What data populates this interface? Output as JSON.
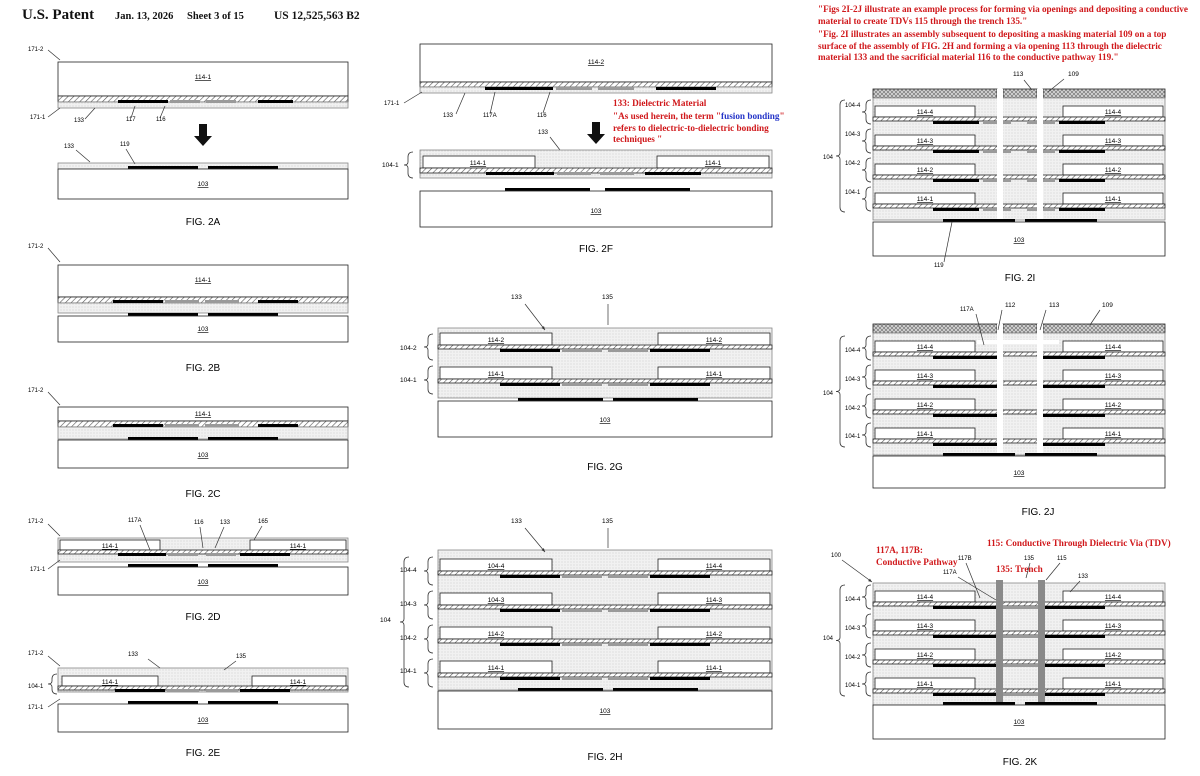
{
  "header": {
    "office": "U.S. Patent",
    "date": "Jan. 13, 2026",
    "sheet": "Sheet 3 of 15",
    "patent_number": "US 12,525,563 B2"
  },
  "colors": {
    "annotation_red": "#d0181b",
    "annotation_blue": "#2535c8",
    "dielectric_fill": "#ececec",
    "hatch": "#555555",
    "conductor": "#000000"
  },
  "annotations": {
    "top_right_1": "\"Figs 2I-2J illustrate an example process for forming via openings and depositing a conductive material to create TDVs 115 through the trench 135.\"",
    "top_right_2": "\"Fig. 2I illustrates an assembly subsequent to depositing a masking material 109 on a top surface of the assembly of FIG. 2H and forming a via opening 113 through the dielectric material 133 and the sacrificial material 116 to the conductive pathway 119.\"",
    "dielectric_title": "133: Dielectric Material",
    "fusion_pre": "\"As used herein, the term \"",
    "fusion_term": "fusion bonding",
    "fusion_post": "\" refers to dielectric-to-dielectric bonding techniques \"",
    "pathway_1": "117A, 117B:",
    "pathway_2": "Conductive Pathway",
    "tdv": "115: Conductive Through Dielectric Via (TDV)",
    "trench": "135: Trench"
  },
  "figures": {
    "2A": {
      "caption": "FIG. 2A",
      "labels": [
        "171-2",
        "114-1",
        "171-1",
        "133",
        "117",
        "116",
        "133",
        "119",
        "103"
      ]
    },
    "2B": {
      "caption": "FIG. 2B",
      "labels": [
        "171-2",
        "114-1",
        "103"
      ]
    },
    "2C": {
      "caption": "FIG. 2C",
      "labels": [
        "171-2",
        "114-1",
        "103"
      ]
    },
    "2D": {
      "caption": "FIG. 2D",
      "labels": [
        "171-2",
        "117A",
        "116",
        "133",
        "165",
        "114-1",
        "114-1",
        "171-1",
        "103"
      ]
    },
    "2E": {
      "caption": "FIG. 2E",
      "labels": [
        "171-2",
        "133",
        "135",
        "104-1",
        "114-1",
        "114-1",
        "171-1",
        "103"
      ]
    },
    "2F": {
      "caption": "FIG. 2F",
      "labels": [
        "114-2",
        "171-1",
        "133",
        "117A",
        "116",
        "133",
        "104-1",
        "114-1",
        "114-1",
        "103"
      ]
    },
    "2G": {
      "caption": "FIG. 2G",
      "labels": [
        "133",
        "135",
        "104-2",
        "114-2",
        "114-2",
        "104-1",
        "114-1",
        "114-1",
        "103"
      ]
    },
    "2H": {
      "caption": "FIG. 2H",
      "labels": [
        "133",
        "135",
        "104-4",
        "114-4",
        "114-4",
        "104-3",
        "114-3",
        "114-3",
        "104",
        "104-2",
        "114-2",
        "114-2",
        "104-1",
        "114-1",
        "114-1",
        "103"
      ]
    },
    "2I": {
      "caption": "FIG. 2I",
      "labels": [
        "113",
        "109",
        "104-4",
        "114-4",
        "114-4",
        "104-3",
        "114-3",
        "114-3",
        "104",
        "104-2",
        "114-2",
        "114-2",
        "104-1",
        "114-1",
        "114-1",
        "103",
        "119"
      ]
    },
    "2J": {
      "caption": "FIG. 2J",
      "labels": [
        "117A",
        "112",
        "113",
        "109",
        "104-4",
        "114-4",
        "114-4",
        "104-3",
        "114-3",
        "114-3",
        "104",
        "104-2",
        "114-2",
        "114-2",
        "104-1",
        "114-1",
        "114-1",
        "103"
      ]
    },
    "2K": {
      "caption": "FIG. 2K",
      "labels": [
        "100",
        "117B",
        "135",
        "115",
        "117A",
        "133",
        "104-4",
        "114-4",
        "114-4",
        "104-3",
        "114-3",
        "114-3",
        "104",
        "104-2",
        "114-2",
        "114-2",
        "104-1",
        "114-1",
        "114-1",
        "103"
      ]
    }
  }
}
